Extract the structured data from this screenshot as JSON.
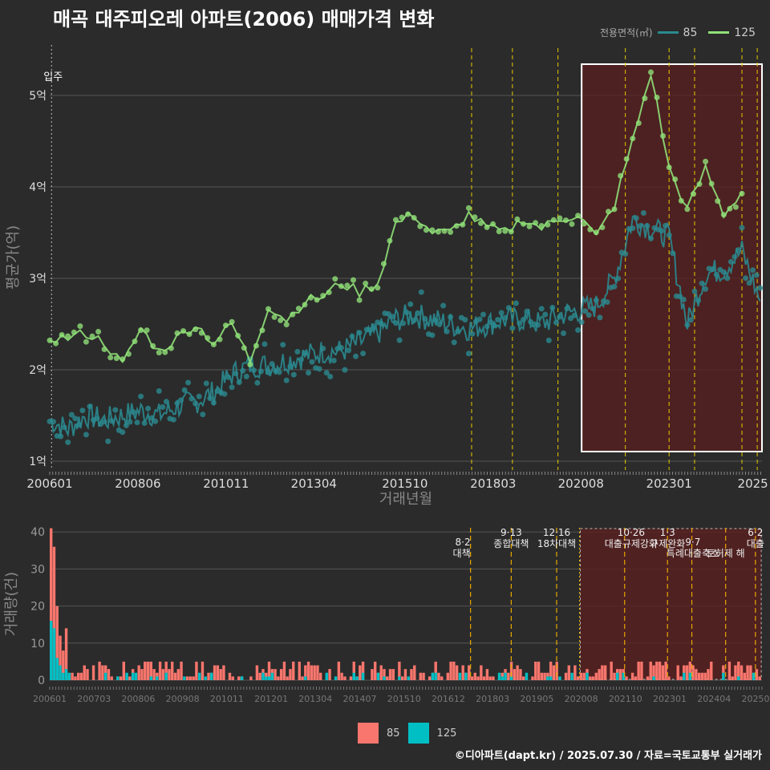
{
  "title": "매곡 대주피오레 아파트(2006) 매매가격 변화",
  "legend": {
    "title": "전용면적(㎡)",
    "items": [
      "85",
      "125"
    ]
  },
  "colors": {
    "s85": "#2a8a90",
    "s125": "#90e078",
    "bar85": "#f8766d",
    "bar125": "#00bfc4",
    "shade": "#5a1f1f",
    "policy": "#e8c800"
  },
  "caption": "©디아파트(dapt.kr) / 2025.07.30 / 자료=국토교통부 실거래가",
  "chart_data": [
    {
      "type": "line",
      "ylabel": "평균가(억)",
      "xlabel": "거래년월",
      "x_ticks": [
        "200601",
        "200806",
        "201011",
        "201304",
        "201510",
        "201803",
        "202008",
        "202301",
        "2025"
      ],
      "y_ticks": [
        "1억",
        "2억",
        "3억",
        "4억",
        "5억"
      ],
      "ylim": [
        1,
        5.4
      ],
      "annotation": "입주",
      "highlight_box": [
        "2020.08",
        "2025.07"
      ],
      "series": [
        {
          "name": "85",
          "x": [
            2006.0,
            2006.5,
            2007.0,
            2007.5,
            2008.0,
            2008.5,
            2009.0,
            2009.5,
            2010.0,
            2010.5,
            2011.0,
            2011.5,
            2012.0,
            2012.5,
            2013.0,
            2013.5,
            2014.0,
            2014.5,
            2015.0,
            2015.5,
            2016.0,
            2016.5,
            2017.0,
            2017.5,
            2018.0,
            2018.5,
            2019.0,
            2019.5,
            2020.0,
            2020.5,
            2021.0,
            2021.5,
            2022.0,
            2022.5,
            2023.0,
            2023.5,
            2024.0,
            2024.5,
            2025.0,
            2025.5
          ],
          "values": [
            1.45,
            1.35,
            1.5,
            1.45,
            1.5,
            1.55,
            1.5,
            1.6,
            1.65,
            1.75,
            1.95,
            2.05,
            2.05,
            2.1,
            2.15,
            2.2,
            2.2,
            2.3,
            2.4,
            2.55,
            2.6,
            2.55,
            2.5,
            2.45,
            2.5,
            2.55,
            2.55,
            2.5,
            2.6,
            2.65,
            2.7,
            3.0,
            3.65,
            3.55,
            3.45,
            2.5,
            3.05,
            3.1,
            3.3,
            2.75
          ]
        },
        {
          "name": "125",
          "x": [
            2006.0,
            2006.5,
            2007.0,
            2007.5,
            2008.0,
            2008.5,
            2009.0,
            2009.5,
            2010.0,
            2010.5,
            2011.0,
            2011.5,
            2012.0,
            2012.5,
            2013.0,
            2013.5,
            2014.0,
            2014.5,
            2015.0,
            2015.5,
            2016.0,
            2016.5,
            2017.0,
            2017.5,
            2018.0,
            2018.5,
            2019.0,
            2019.5,
            2020.0,
            2020.5,
            2021.0,
            2021.5,
            2022.0,
            2022.5,
            2023.0,
            2023.5,
            2024.0,
            2024.5,
            2025.0
          ],
          "values": [
            2.35,
            2.35,
            2.4,
            2.3,
            2.05,
            2.45,
            2.2,
            2.35,
            2.5,
            2.3,
            2.5,
            2.1,
            2.7,
            2.55,
            2.75,
            2.8,
            2.95,
            2.85,
            2.95,
            3.6,
            3.7,
            3.5,
            3.5,
            3.7,
            3.55,
            3.5,
            3.65,
            3.55,
            3.65,
            3.7,
            3.45,
            3.8,
            4.5,
            5.25,
            4.2,
            3.75,
            4.2,
            3.7,
            3.95
          ]
        }
      ]
    },
    {
      "type": "bar",
      "ylabel": "거래량(건)",
      "x_ticks": [
        "200601",
        "200703",
        "200806",
        "200908",
        "201011",
        "201201",
        "201304",
        "201407",
        "201510",
        "201612",
        "201803",
        "201905",
        "202008",
        "202110",
        "202301",
        "202404",
        "202507"
      ],
      "y_ticks": [
        "0",
        "10",
        "20",
        "30",
        "40"
      ],
      "ylim": [
        0,
        42
      ],
      "series": [
        {
          "name": "85",
          "peaks": [
            41,
            36,
            20,
            12,
            8,
            14
          ]
        },
        {
          "name": "125",
          "peaks": [
            16,
            14,
            6,
            4,
            2,
            3
          ]
        }
      ],
      "policy_labels": [
        {
          "date": "8·2",
          "name": "대책"
        },
        {
          "date": "9·13",
          "name": "종합대책"
        },
        {
          "date": "12·16",
          "name": "18차대책"
        },
        {
          "date": "10·26",
          "name": "대출규제강화"
        },
        {
          "date": "1·3",
          "name": "규제완화"
        },
        {
          "date": "9·7",
          "name": "특례대출축소"
        },
        {
          "date": "",
          "name": "토허제 해"
        },
        {
          "date": "6·2",
          "name": "대출"
        }
      ]
    }
  ]
}
